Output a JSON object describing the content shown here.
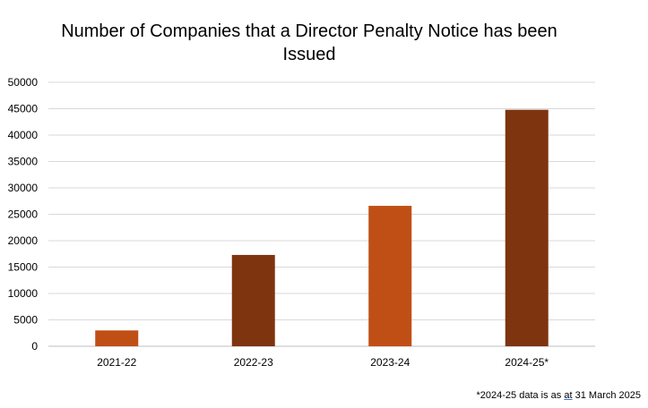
{
  "chart_data": {
    "type": "bar",
    "title": "Number of Companies that a Director Penalty Notice has been Issued",
    "xlabel": "",
    "ylabel": "",
    "categories": [
      "2021-22",
      "2022-23",
      "2023-24",
      "2024-25*"
    ],
    "values": [
      3000,
      17300,
      26600,
      44800
    ],
    "ylim": [
      0,
      50000
    ],
    "yticks": [
      0,
      5000,
      10000,
      15000,
      20000,
      25000,
      30000,
      35000,
      40000,
      45000,
      50000
    ],
    "grid": true,
    "legend": "none",
    "bar_colors": [
      "#c04f15",
      "#7e340e",
      "#c04f15",
      "#7e340e"
    ]
  },
  "footnote": {
    "before": "*2024-25 data is as ",
    "underlined": "at",
    "after": " 31 March 2025"
  },
  "colors": {
    "gridline": "#d9d9d9",
    "axis": "#bfbfbf",
    "text": "#000000"
  }
}
